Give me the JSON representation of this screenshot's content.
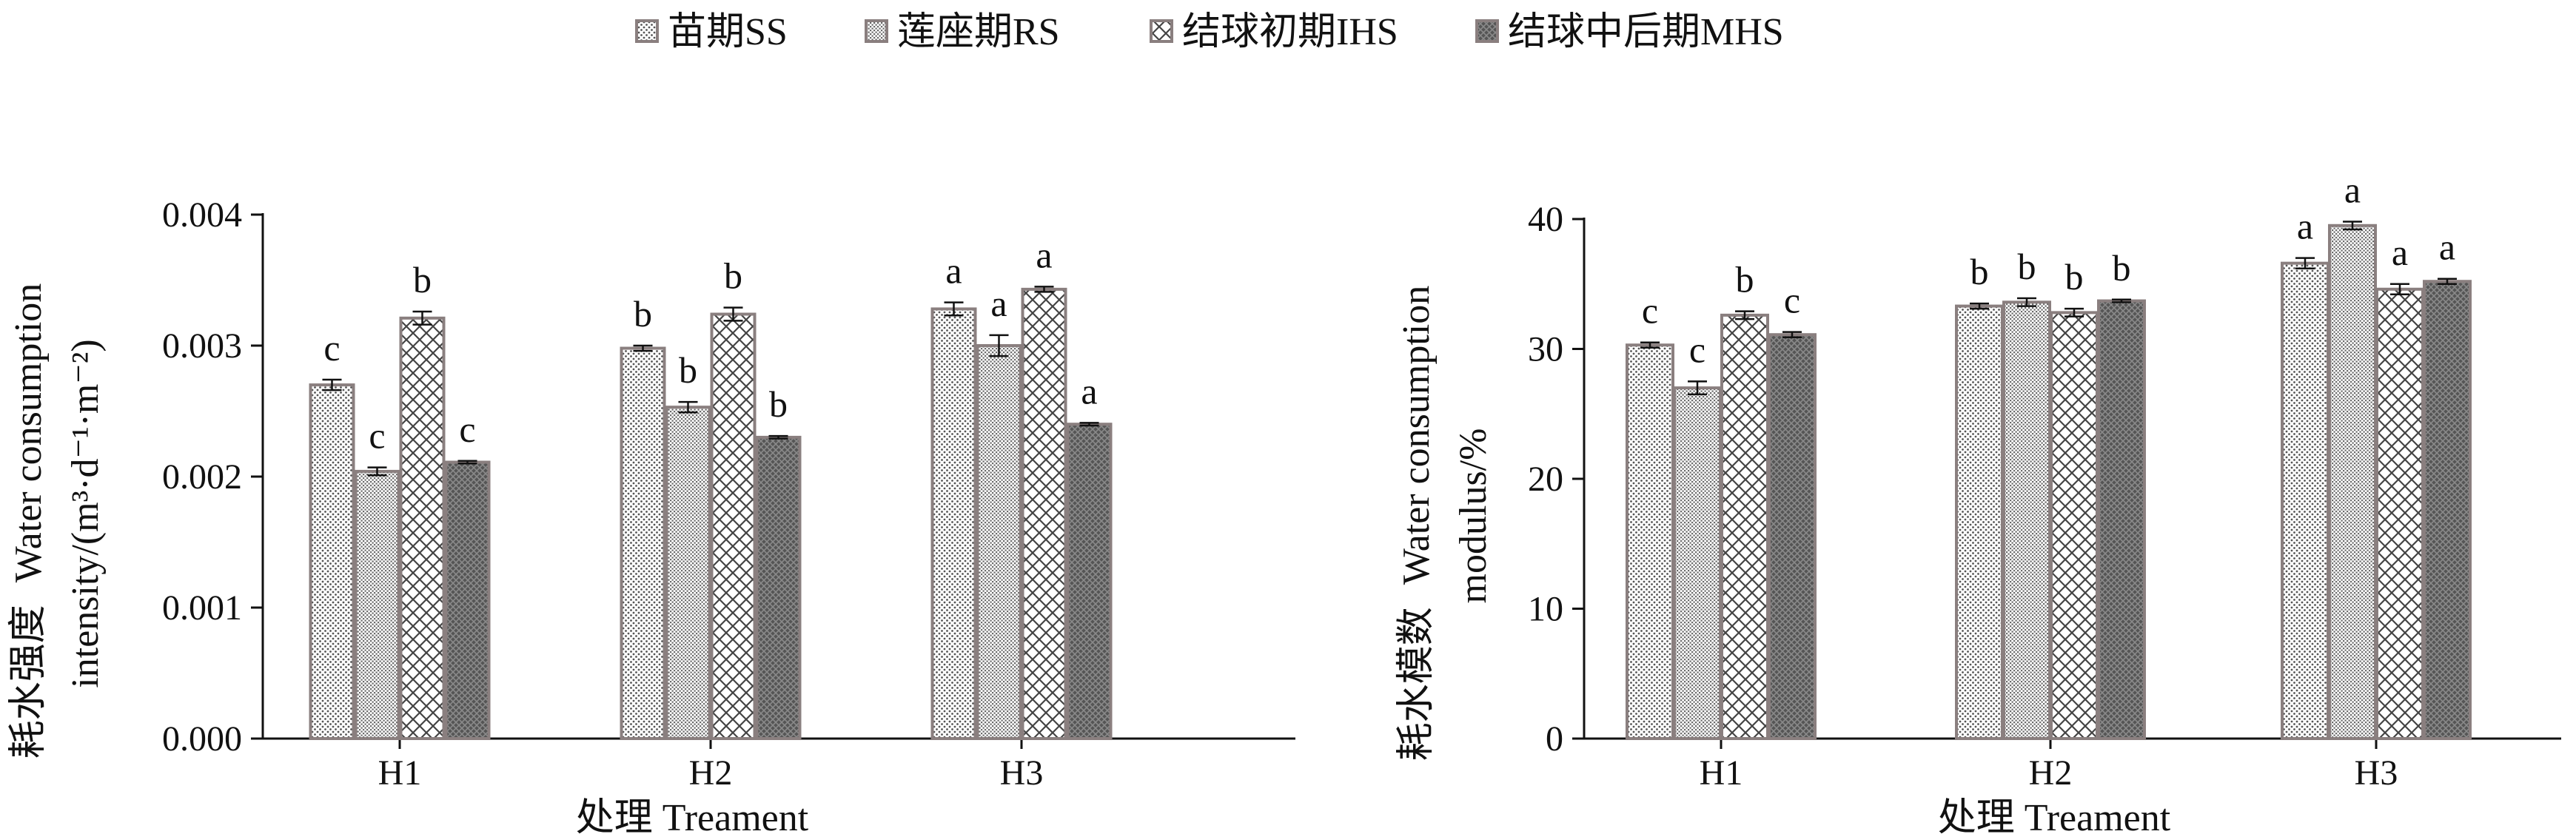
{
  "legend": [
    {
      "label": "苗期SS",
      "pattern": "dots"
    },
    {
      "label": "莲座期RS",
      "pattern": "dense"
    },
    {
      "label": "结球初期IHS",
      "pattern": "cross"
    },
    {
      "label": "结球中后期MHS",
      "pattern": "dark"
    }
  ],
  "colors": {
    "bar_outline": "#8a7f7f",
    "axis": "#111111",
    "error_bar": "#111111"
  },
  "chart_data": [
    {
      "type": "bar",
      "categories": [
        "H1",
        "H2",
        "H3"
      ],
      "xlabel": "处理 Treament",
      "ylabel_cn": "耗水强度",
      "ylabel_line1": "Water consumption",
      "ylabel_line2": "intensity/(m³·d⁻¹·m⁻²)",
      "ylim": [
        0,
        0.004
      ],
      "yticks": [
        "0.000",
        "0.001",
        "0.002",
        "0.003",
        "0.004"
      ],
      "series": [
        {
          "name": "苗期SS",
          "values": [
            0.0027,
            0.00298,
            0.00328
          ],
          "errors": [
            4e-05,
            2e-05,
            5e-05
          ],
          "labels": [
            "c",
            "b",
            "a"
          ]
        },
        {
          "name": "莲座期RS",
          "values": [
            0.00204,
            0.00253,
            0.003
          ],
          "errors": [
            3e-05,
            4e-05,
            8e-05
          ],
          "labels": [
            "c",
            "b",
            "a"
          ]
        },
        {
          "name": "结球初期IHS",
          "values": [
            0.00321,
            0.00324,
            0.00343
          ],
          "errors": [
            5e-05,
            5e-05,
            2e-05
          ],
          "labels": [
            "b",
            "b",
            "a"
          ]
        },
        {
          "name": "结球中后期MHS",
          "values": [
            0.00211,
            0.0023,
            0.0024
          ],
          "errors": [
            1e-05,
            1e-05,
            1e-05
          ],
          "labels": [
            "c",
            "b",
            "a"
          ]
        }
      ]
    },
    {
      "type": "bar",
      "categories": [
        "H1",
        "H2",
        "H3"
      ],
      "xlabel": "处理 Treament",
      "ylabel_cn": "耗水模数",
      "ylabel_line1": "Water consumption",
      "ylabel_line2": "modulus/%",
      "ylim": [
        0,
        40
      ],
      "yticks": [
        "0",
        "10",
        "20",
        "30",
        "40"
      ],
      "series": [
        {
          "name": "苗期SS",
          "values": [
            30.3,
            33.3,
            36.6
          ],
          "errors": [
            0.2,
            0.2,
            0.4
          ],
          "labels": [
            "c",
            "b",
            "a"
          ]
        },
        {
          "name": "莲座期RS",
          "values": [
            27.0,
            33.6,
            39.5
          ],
          "errors": [
            0.5,
            0.3,
            0.3
          ],
          "labels": [
            "c",
            "b",
            "a"
          ]
        },
        {
          "name": "结球初期IHS",
          "values": [
            32.6,
            32.8,
            34.6
          ],
          "errors": [
            0.3,
            0.3,
            0.4
          ],
          "labels": [
            "b",
            "b",
            "a"
          ]
        },
        {
          "name": "结球中后期MHS",
          "values": [
            31.1,
            33.7,
            35.2
          ],
          "errors": [
            0.2,
            0.1,
            0.2
          ],
          "labels": [
            "c",
            "b",
            "a"
          ]
        }
      ]
    }
  ]
}
